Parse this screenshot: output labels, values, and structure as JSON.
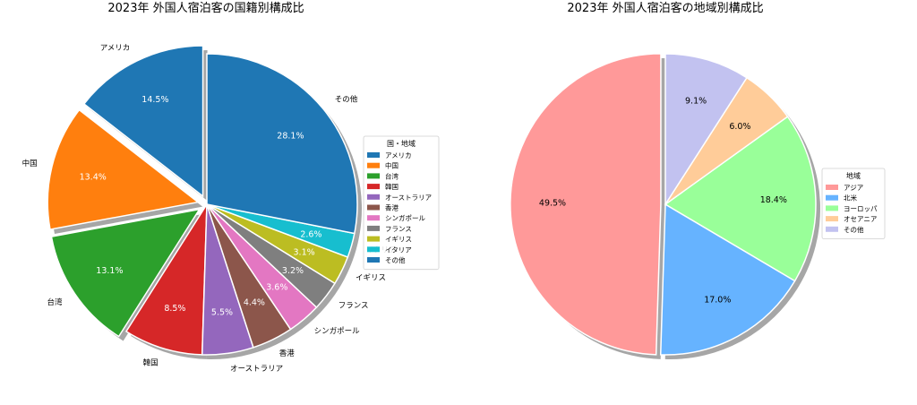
{
  "chart_data": [
    {
      "type": "pie",
      "title": "2023年 外国人宿泊客の国籍別構成比",
      "legend_title": "国・地域",
      "legend_position": "right",
      "exploded": true,
      "shadow": true,
      "slices": [
        {
          "label": "アメリカ",
          "value": 14.5,
          "pct_label": "14.5%",
          "color": "#1f77b4",
          "explode": true
        },
        {
          "label": "中国",
          "value": 13.4,
          "pct_label": "13.4%",
          "color": "#ff7f0e",
          "explode": true
        },
        {
          "label": "台湾",
          "value": 13.1,
          "pct_label": "13.1%",
          "color": "#2ca02c",
          "explode": true
        },
        {
          "label": "韓国",
          "value": 8.5,
          "pct_label": "8.5%",
          "color": "#d62728",
          "explode": false
        },
        {
          "label": "オーストラリア",
          "value": 5.5,
          "pct_label": "5.5%",
          "color": "#9467bd",
          "explode": false
        },
        {
          "label": "香港",
          "value": 4.4,
          "pct_label": "4.4%",
          "color": "#8c564b",
          "explode": false
        },
        {
          "label": "シンガポール",
          "value": 3.6,
          "pct_label": "3.6%",
          "color": "#e377c2",
          "explode": false
        },
        {
          "label": "フランス",
          "value": 3.2,
          "pct_label": "3.2%",
          "color": "#7f7f7f",
          "explode": false
        },
        {
          "label": "イギリス",
          "value": 3.1,
          "pct_label": "3.1%",
          "color": "#bcbd22",
          "explode": false
        },
        {
          "label": "イタリア",
          "value": 2.6,
          "pct_label": "2.6%",
          "color": "#17becf",
          "explode": false
        },
        {
          "label": "その他",
          "value": 28.1,
          "pct_label": "28.1%",
          "color": "#1f77b4",
          "explode": false
        }
      ]
    },
    {
      "type": "pie",
      "title": "2023年 外国人宿泊客の地域別構成比",
      "legend_title": "地域",
      "legend_position": "right",
      "exploded": true,
      "shadow": true,
      "slices": [
        {
          "label": "アジア",
          "value": 49.5,
          "pct_label": "49.5%",
          "color": "#ff9999",
          "explode": true
        },
        {
          "label": "北米",
          "value": 17.0,
          "pct_label": "17.0%",
          "color": "#66b3ff",
          "explode": false
        },
        {
          "label": "ヨーロッパ",
          "value": 18.4,
          "pct_label": "18.4%",
          "color": "#99ff99",
          "explode": false
        },
        {
          "label": "オセアニア",
          "value": 6.0,
          "pct_label": "6.0%",
          "color": "#ffcc99",
          "explode": false
        },
        {
          "label": "その他",
          "value": 9.1,
          "pct_label": "9.1%",
          "color": "#c2c2f0",
          "explode": false
        }
      ]
    }
  ]
}
